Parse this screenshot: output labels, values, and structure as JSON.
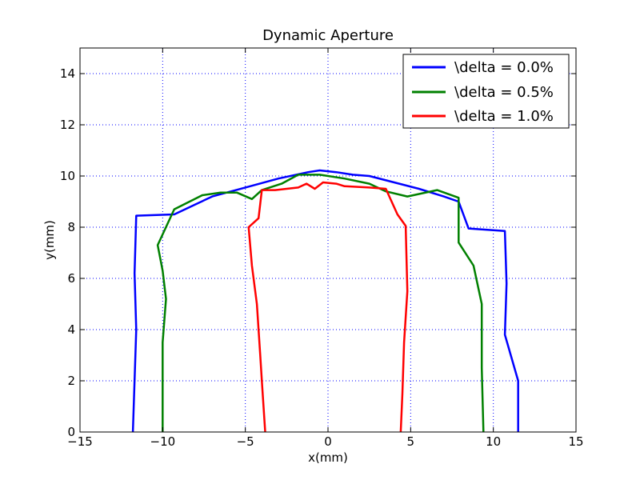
{
  "chart_data": {
    "type": "line",
    "title": "Dynamic Aperture",
    "xlabel": "x(mm)",
    "ylabel": "y(mm)",
    "xlim": [
      -15,
      15
    ],
    "ylim": [
      0,
      15
    ],
    "xticks": [
      -15,
      -10,
      -5,
      0,
      5,
      10,
      15
    ],
    "yticks": [
      0,
      2,
      4,
      6,
      8,
      10,
      12,
      14
    ],
    "xtick_labels": [
      "−15",
      "−10",
      "−5",
      "0",
      "5",
      "10",
      "15"
    ],
    "ytick_labels": [
      "0",
      "2",
      "4",
      "6",
      "8",
      "10",
      "12",
      "14"
    ],
    "grid": true,
    "legend_position": "top-right",
    "series": [
      {
        "name": "\\delta = 0.0%",
        "color": "#0000ff",
        "x": [
          -11.8,
          -11.7,
          -11.6,
          -11.7,
          -11.6,
          -9.3,
          -7.0,
          -5.0,
          -3.0,
          -1.2,
          -0.5,
          0.5,
          1.5,
          2.5,
          4.0,
          5.5,
          7.0,
          7.9,
          8.5,
          10.7,
          10.8,
          10.7,
          11.5,
          11.5
        ],
        "y": [
          0,
          2.0,
          4.0,
          6.2,
          8.45,
          8.5,
          9.2,
          9.55,
          9.9,
          10.15,
          10.22,
          10.15,
          10.05,
          10.0,
          9.75,
          9.5,
          9.2,
          9.0,
          7.95,
          7.85,
          5.8,
          3.8,
          2.0,
          0
        ],
        "data_labels": []
      },
      {
        "name": "\\delta = 0.5%",
        "color": "#008000",
        "x": [
          -10.0,
          -10.0,
          -9.8,
          -10.0,
          -10.3,
          -9.3,
          -7.6,
          -6.5,
          -5.5,
          -4.6,
          -4.0,
          -2.8,
          -1.8,
          -0.5,
          1.0,
          2.5,
          3.5,
          4.8,
          6.6,
          7.9,
          7.9,
          8.8,
          9.3,
          9.3,
          9.4
        ],
        "y": [
          0,
          3.5,
          5.2,
          6.3,
          7.3,
          8.7,
          9.25,
          9.35,
          9.35,
          9.1,
          9.45,
          9.7,
          10.05,
          10.05,
          9.9,
          9.7,
          9.4,
          9.2,
          9.45,
          9.15,
          7.4,
          6.5,
          5.0,
          2.5,
          0
        ],
        "data_labels": []
      },
      {
        "name": "\\delta = 1.0%",
        "color": "#ff0000",
        "x": [
          -3.8,
          -4.0,
          -4.1,
          -4.3,
          -4.6,
          -4.8,
          -4.2,
          -4.0,
          -3.2,
          -1.8,
          -1.3,
          -0.8,
          -0.3,
          0.5,
          1.0,
          2.5,
          3.5,
          4.2,
          4.7,
          4.8,
          4.6,
          4.5,
          4.4
        ],
        "y": [
          0,
          2.0,
          3.0,
          5.0,
          6.5,
          8.0,
          8.35,
          9.45,
          9.45,
          9.55,
          9.7,
          9.5,
          9.75,
          9.7,
          9.6,
          9.55,
          9.5,
          8.5,
          8.05,
          5.5,
          3.5,
          1.5,
          0
        ],
        "data_labels": []
      }
    ]
  }
}
